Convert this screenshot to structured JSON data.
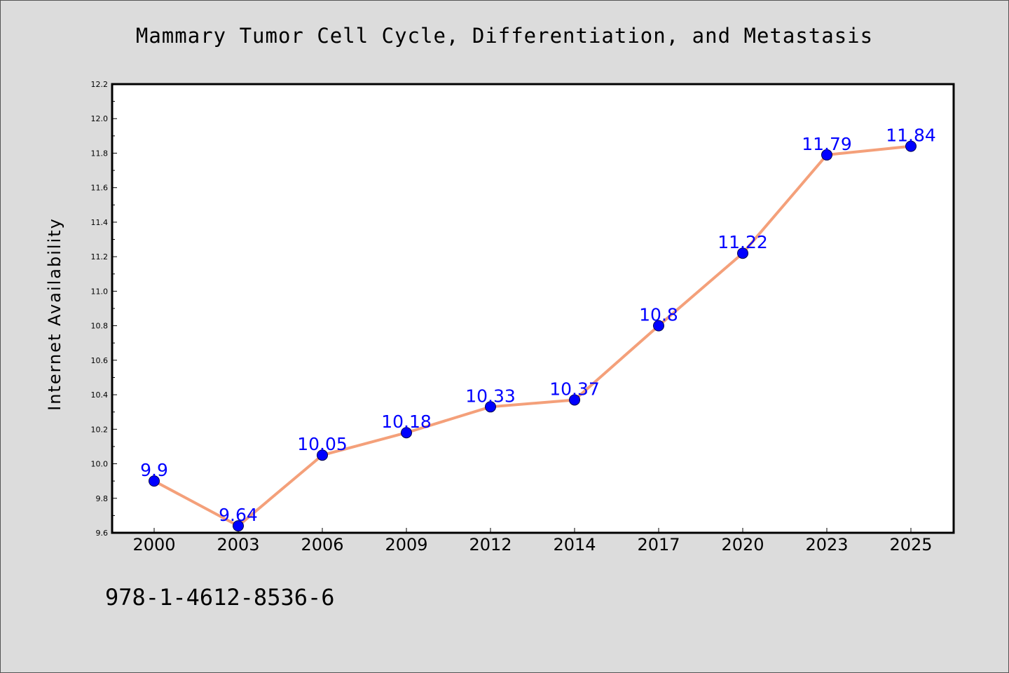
{
  "chart_data": {
    "type": "line",
    "title": "Mammary Tumor Cell Cycle, Differentiation, and Metastasis",
    "ylabel": "Internet Availability",
    "xlabel": "",
    "categories": [
      "2000",
      "2003",
      "2006",
      "2009",
      "2012",
      "2014",
      "2017",
      "2020",
      "2023",
      "2025"
    ],
    "series": [
      {
        "values": [
          9.9,
          9.64,
          10.05,
          10.18,
          10.33,
          10.37,
          10.8,
          11.22,
          11.79,
          11.84
        ],
        "labels": [
          "9.9",
          "9.64",
          "10.05",
          "10.18",
          "10.33",
          "10.37",
          "10.8",
          "11.22",
          "11.79",
          "11.84"
        ]
      }
    ],
    "ylim": [
      9.6,
      12.2
    ],
    "yticks": [
      "9.6",
      "9.8",
      "10.0",
      "10.2",
      "10.4",
      "10.6",
      "10.8",
      "11.0",
      "11.2",
      "11.4",
      "11.6",
      "11.8",
      "12.0",
      "12.2"
    ],
    "grid": false,
    "line_color": "#f4a07a",
    "marker_color": "#0000ff",
    "label_color": "#0000ff",
    "background": "#dcdcdc",
    "plot_background": "#ffffff"
  },
  "footer": {
    "isbn": "978-1-4612-8536-6"
  }
}
